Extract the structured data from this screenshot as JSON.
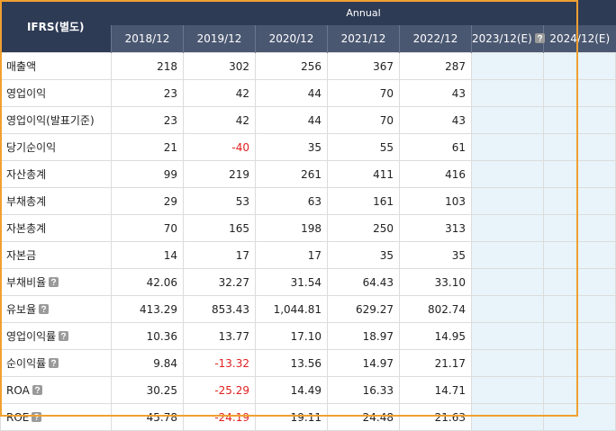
{
  "table": {
    "header": {
      "title": "IFRS(별도)",
      "group": "Annual"
    },
    "columns": [
      "2018/12",
      "2019/12",
      "2020/12",
      "2021/12",
      "2022/12",
      "2023/12(E)",
      "2024/12(E)"
    ],
    "rows": [
      {
        "label": "매출액",
        "values": [
          "218",
          "302",
          "256",
          "367",
          "287"
        ]
      },
      {
        "label": "영업이익",
        "values": [
          "23",
          "42",
          "44",
          "70",
          "43"
        ]
      },
      {
        "label": "영업이익(발표기준)",
        "values": [
          "23",
          "42",
          "44",
          "70",
          "43"
        ]
      },
      {
        "label": "당기순이익",
        "values": [
          "21",
          "-40",
          "35",
          "55",
          "61"
        ]
      },
      {
        "label": "자산총계",
        "values": [
          "99",
          "219",
          "261",
          "411",
          "416"
        ]
      },
      {
        "label": "부채총계",
        "values": [
          "29",
          "53",
          "63",
          "161",
          "103"
        ]
      },
      {
        "label": "자본총계",
        "values": [
          "70",
          "165",
          "198",
          "250",
          "313"
        ]
      },
      {
        "label": "자본금",
        "values": [
          "14",
          "17",
          "17",
          "35",
          "35"
        ]
      },
      {
        "label": "부채비율",
        "help": true,
        "values": [
          "42.06",
          "32.27",
          "31.54",
          "64.43",
          "33.10"
        ]
      },
      {
        "label": "유보율",
        "help": true,
        "values": [
          "413.29",
          "853.43",
          "1,044.81",
          "629.27",
          "802.74"
        ]
      },
      {
        "label": "영업이익률",
        "help": true,
        "values": [
          "10.36",
          "13.77",
          "17.10",
          "18.97",
          "14.95"
        ]
      },
      {
        "label": "순이익률",
        "help": true,
        "values": [
          "9.84",
          "-13.32",
          "13.56",
          "14.97",
          "21.17"
        ]
      },
      {
        "label": "ROA",
        "help": true,
        "values": [
          "30.25",
          "-25.29",
          "14.49",
          "16.33",
          "14.71"
        ]
      },
      {
        "label": "ROE",
        "help": true,
        "values": [
          "45.78",
          "-24.19",
          "19.11",
          "24.48",
          "21.63"
        ]
      }
    ],
    "help_columns": [
      5
    ]
  }
}
